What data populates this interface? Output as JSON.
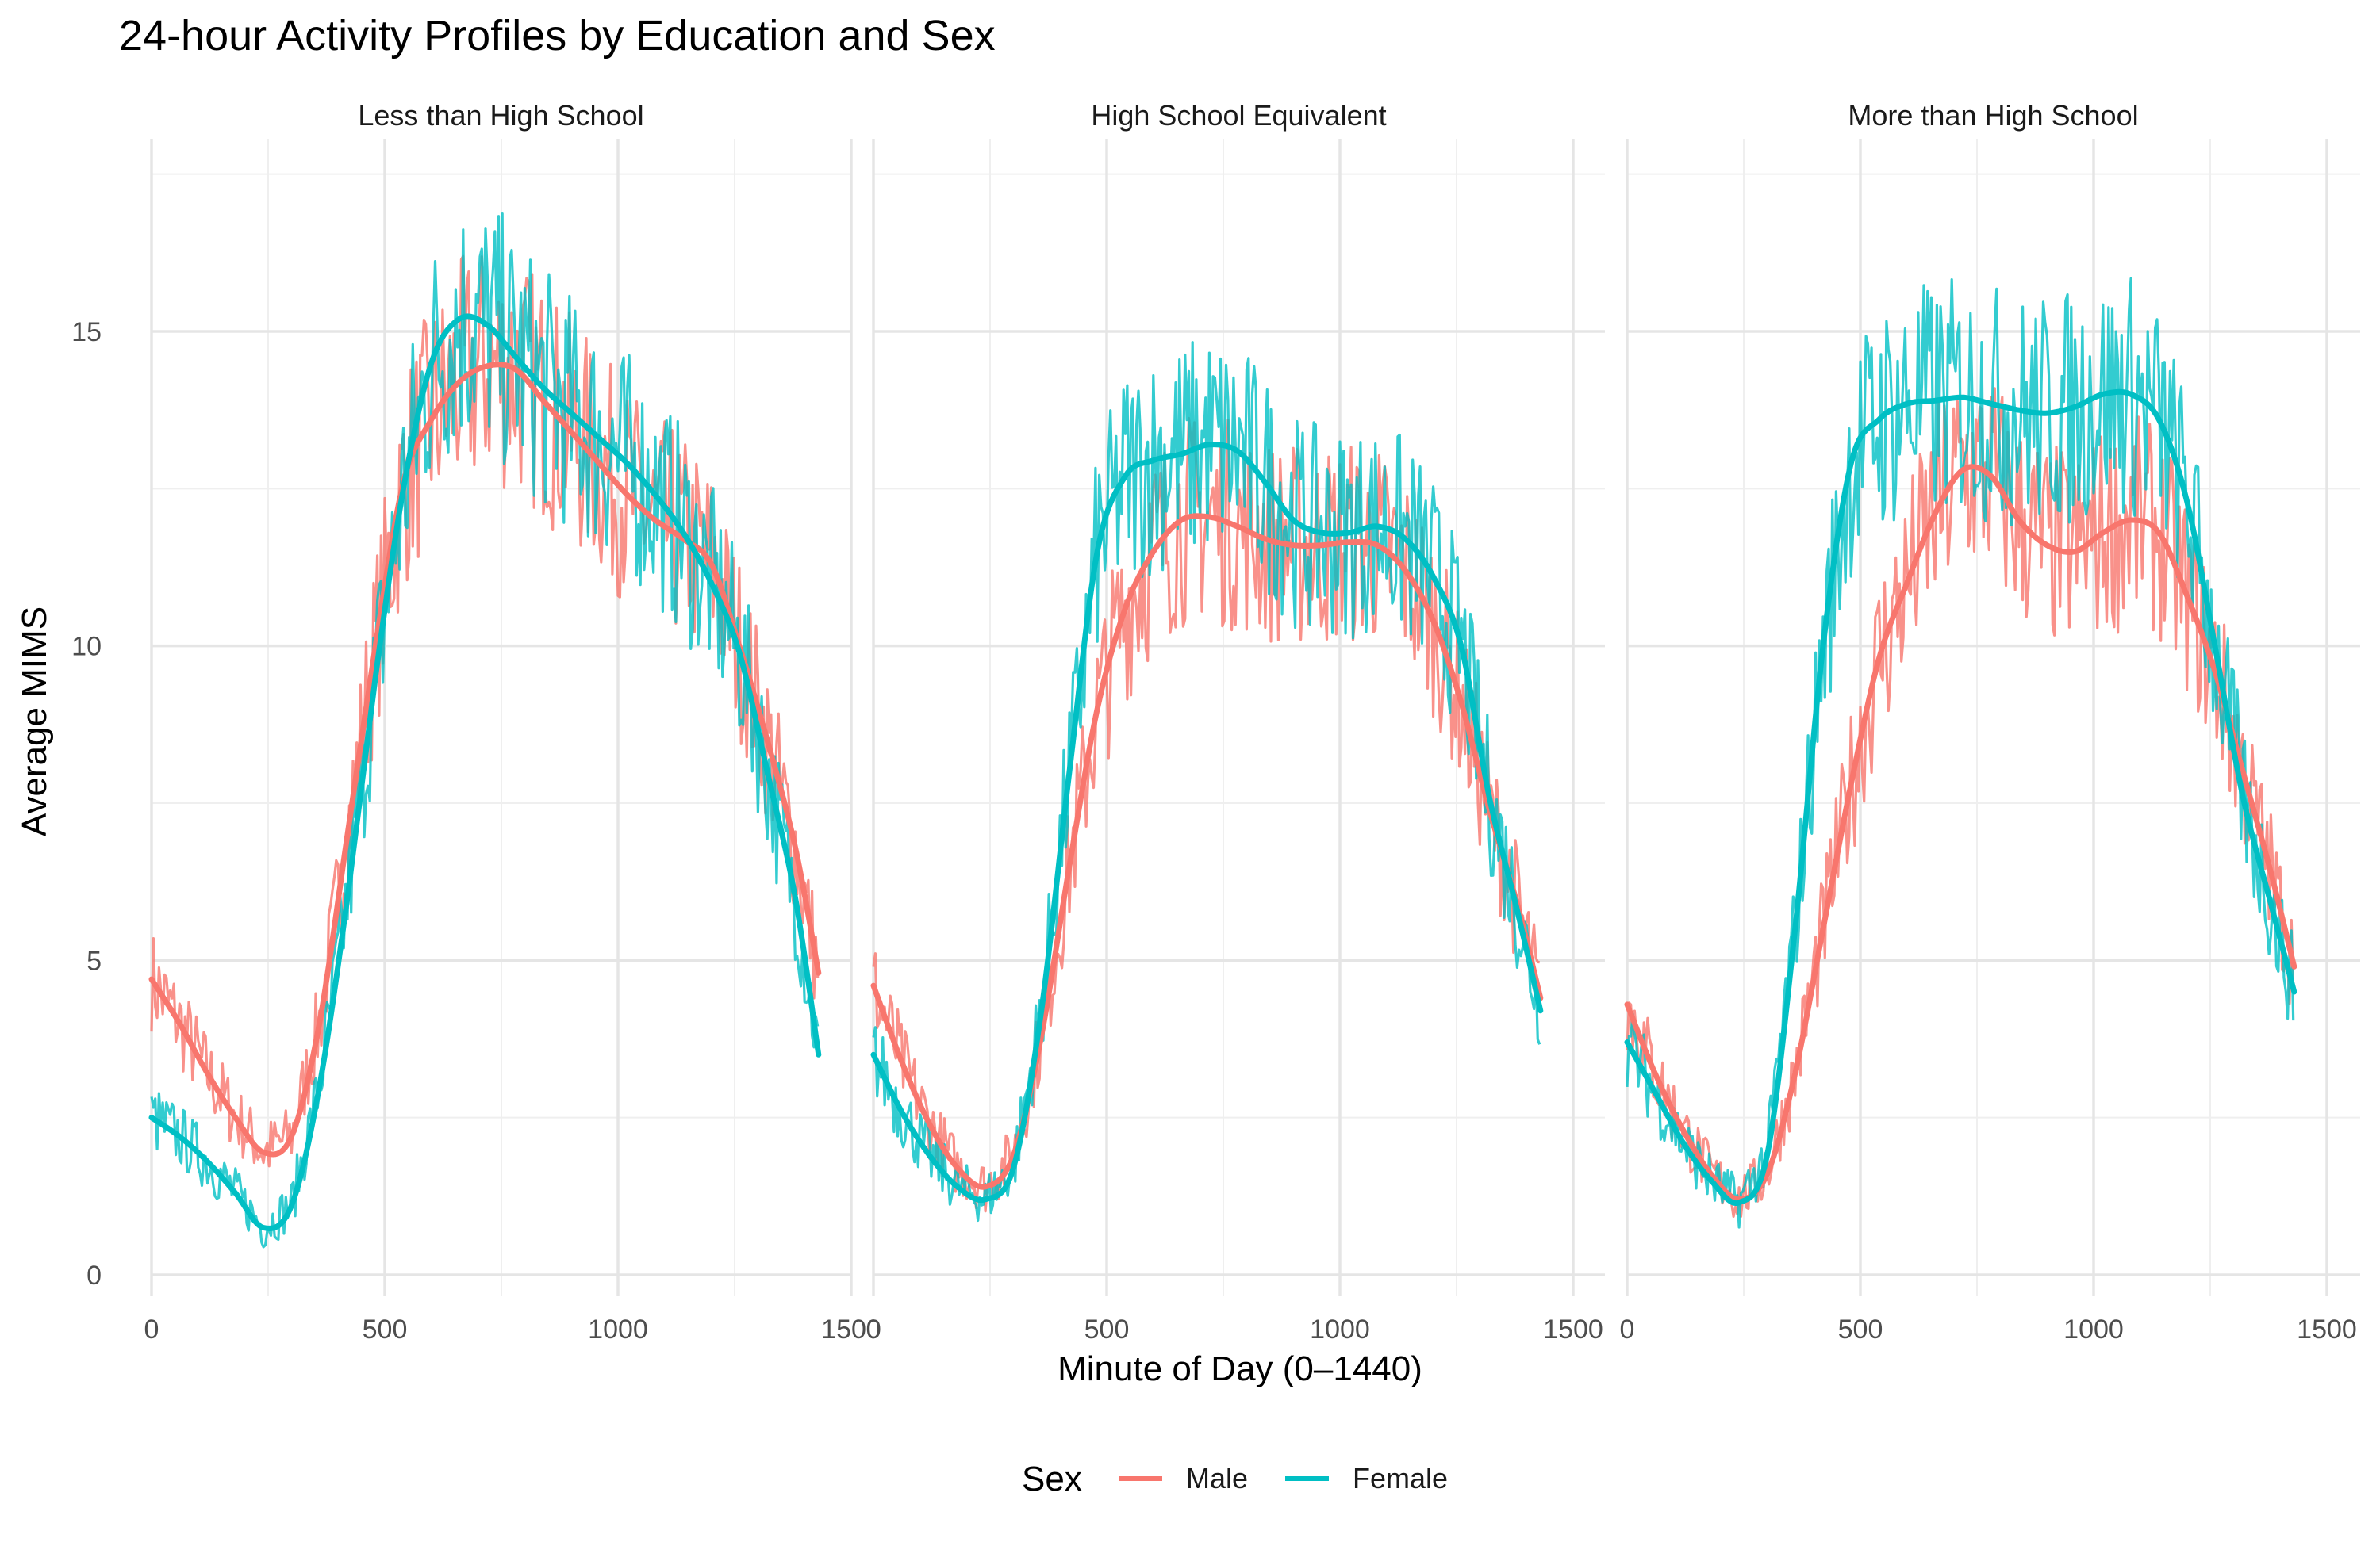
{
  "chart_data": {
    "type": "line",
    "title": "24-hour Activity Profiles by Education and Sex",
    "xlabel": "Minute of Day (0–1440)",
    "ylabel": "Average MIMS",
    "xlim": [
      -50,
      1500
    ],
    "ylim": [
      -0.6,
      17.6
    ],
    "x_ticks": [
      0,
      500,
      1000,
      1500
    ],
    "x_tick_labels": [
      "0",
      "500",
      "1000",
      "1500"
    ],
    "y_ticks": [
      0,
      5,
      10,
      15
    ],
    "y_tick_labels": [
      "0",
      "5",
      "10",
      "15"
    ],
    "grid": true,
    "legend": {
      "title": "Sex",
      "placement": "bottom",
      "entries": [
        {
          "name": "Male",
          "color": "#F8766D"
        },
        {
          "name": "Female",
          "color": "#00BFC4"
        }
      ]
    },
    "facets": [
      {
        "name": "Less than High School",
        "smooth": {
          "x": [
            0,
            60,
            120,
            180,
            240,
            300,
            360,
            420,
            480,
            540,
            600,
            660,
            720,
            780,
            840,
            900,
            960,
            1020,
            1080,
            1140,
            1200,
            1260,
            1320,
            1380,
            1430
          ],
          "Male": [
            4.7,
            4.0,
            3.2,
            2.5,
            1.95,
            2.2,
            4.0,
            7.0,
            10.0,
            12.6,
            13.6,
            14.2,
            14.45,
            14.4,
            13.9,
            13.4,
            12.9,
            12.4,
            12.0,
            11.7,
            11.3,
            10.0,
            8.5,
            6.8,
            4.8
          ],
          "Female": [
            2.5,
            2.2,
            1.8,
            1.3,
            0.75,
            1.1,
            3.0,
            6.0,
            9.5,
            12.5,
            14.5,
            15.2,
            15.1,
            14.6,
            14.1,
            13.7,
            13.3,
            12.9,
            12.4,
            11.8,
            11.0,
            9.9,
            8.0,
            6.0,
            3.5
          ]
        }
      },
      {
        "name": "High School Equivalent",
        "smooth": {
          "x": [
            0,
            60,
            120,
            180,
            240,
            300,
            360,
            420,
            480,
            540,
            600,
            660,
            720,
            780,
            840,
            900,
            960,
            1020,
            1080,
            1140,
            1200,
            1260,
            1320,
            1380,
            1430
          ],
          "Male": [
            4.6,
            3.4,
            2.4,
            1.7,
            1.4,
            1.9,
            3.8,
            6.5,
            9.0,
            10.6,
            11.5,
            12.0,
            12.05,
            11.9,
            11.7,
            11.6,
            11.6,
            11.65,
            11.6,
            11.2,
            10.4,
            9.1,
            7.4,
            5.9,
            4.4
          ],
          "Female": [
            3.5,
            2.6,
            1.9,
            1.4,
            1.2,
            1.7,
            4.2,
            8.0,
            11.5,
            12.7,
            12.95,
            13.05,
            13.2,
            13.1,
            12.6,
            12.0,
            11.8,
            11.8,
            11.9,
            11.7,
            11.1,
            10.0,
            7.6,
            5.8,
            4.2
          ]
        }
      },
      {
        "name": "More than High School",
        "smooth": {
          "x": [
            0,
            60,
            120,
            180,
            240,
            300,
            360,
            420,
            480,
            540,
            600,
            660,
            720,
            780,
            840,
            900,
            960,
            1020,
            1080,
            1140,
            1200,
            1260,
            1320,
            1380,
            1430
          ],
          "Male": [
            4.3,
            3.2,
            2.3,
            1.6,
            1.2,
            1.6,
            3.2,
            5.5,
            7.8,
            9.8,
            11.0,
            12.1,
            12.8,
            12.7,
            12.0,
            11.6,
            11.5,
            11.8,
            12.0,
            11.8,
            10.8,
            9.6,
            8.0,
            6.4,
            4.9
          ],
          "Female": [
            3.7,
            2.9,
            2.1,
            1.5,
            1.15,
            1.9,
            5.5,
            10.0,
            12.9,
            13.6,
            13.85,
            13.9,
            13.95,
            13.85,
            13.75,
            13.7,
            13.8,
            14.0,
            14.0,
            13.6,
            12.3,
            10.0,
            7.6,
            5.9,
            4.5
          ]
        }
      }
    ]
  }
}
